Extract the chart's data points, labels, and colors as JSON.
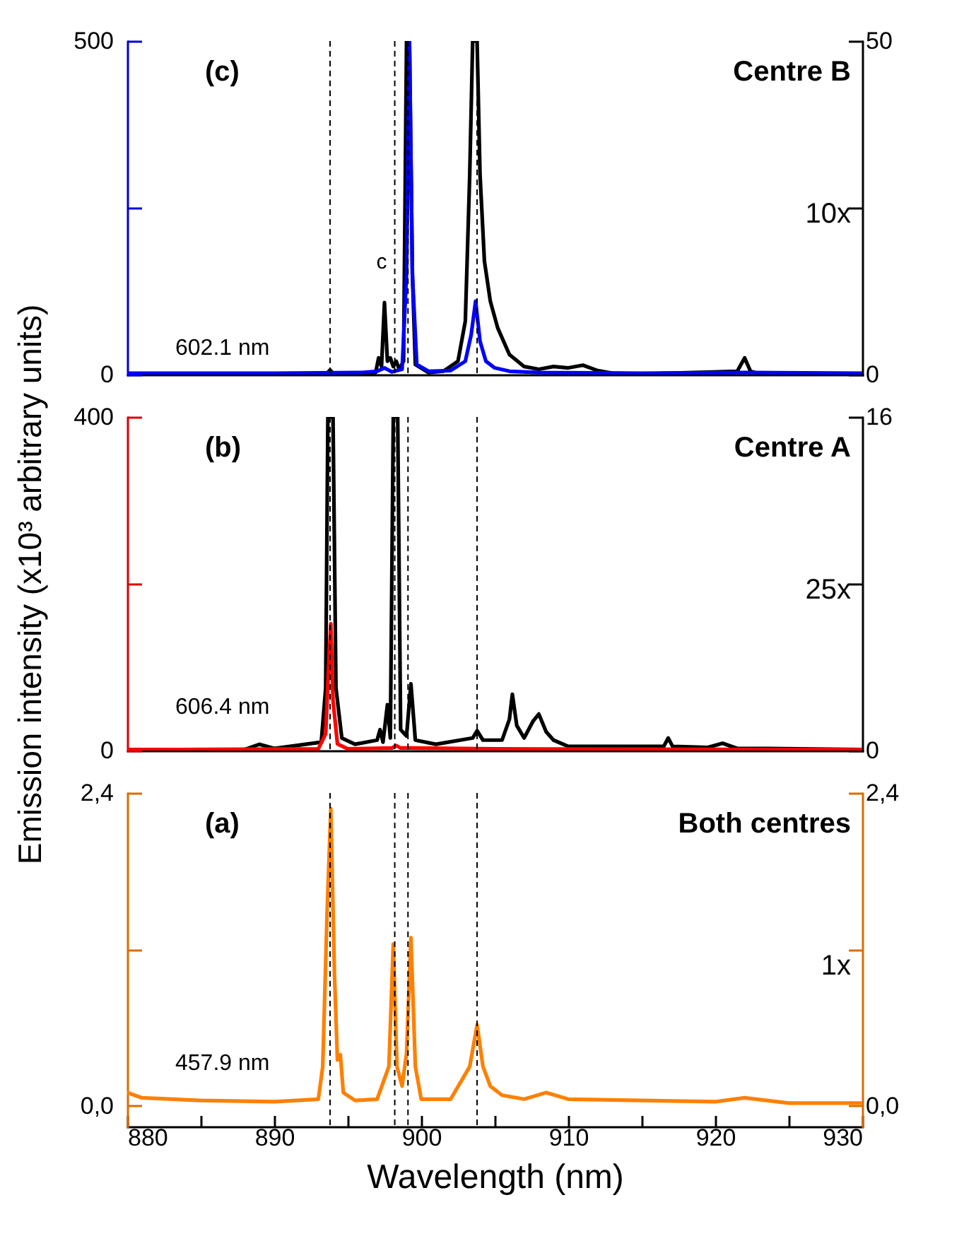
{
  "chart_data": [
    {
      "type": "line",
      "tick_labels": "y",
      "xlim": [
        880,
        930
      ],
      "ylim": [
        0,
        500
      ],
      "yticks": [
        0,
        {
          "value": 250,
          "label": null
        },
        500
      ],
      "y2lim": [
        0,
        50
      ],
      "y2ticks": [
        0,
        {
          "value": 25,
          "label": null
        },
        50
      ],
      "line_style": "solid",
      "ref_lines": [
        {
          "axis": "x",
          "value": 893.8,
          "line_style": "dashed",
          "color": "#000000"
        },
        {
          "axis": "x",
          "value": 898.2,
          "line_style": "dashed",
          "color": "#000000"
        },
        {
          "axis": "x",
          "value": 899.1,
          "line_style": "dashed",
          "color": "#000000"
        },
        {
          "axis": "x",
          "value": 903.8,
          "line_style": "dashed",
          "color": "#000000"
        }
      ],
      "annotations": [
        "(c)",
        "Centre B",
        "10x",
        "602.1 nm",
        "c"
      ],
      "series": [
        {
          "color": "#000000",
          "axis": "y2",
          "x": [
            880,
            890,
            893.6,
            893.8,
            894.0,
            896,
            896.9,
            897.1,
            897.3,
            897.5,
            897.7,
            897.9,
            898.1,
            898.3,
            898.5,
            898.8,
            899.0,
            899.2,
            899.4,
            899.6,
            900.5,
            901.5,
            902.5,
            903.0,
            903.3,
            903.5,
            903.8,
            904.0,
            904.3,
            904.7,
            905.2,
            906,
            907,
            908,
            909,
            910,
            911,
            912,
            913,
            915,
            921.5,
            922,
            922.4,
            923,
            930
          ],
          "values": [
            0.1,
            0.1,
            0.2,
            0.7,
            0.2,
            0.2,
            0.3,
            2.5,
            1.2,
            10.8,
            2,
            2.5,
            1.2,
            2,
            0.8,
            2,
            50,
            50,
            15,
            1.5,
            0.3,
            0.5,
            2,
            8,
            30,
            50,
            50,
            30,
            17,
            11,
            7,
            3,
            1.2,
            0.8,
            1.2,
            1.0,
            1.4,
            0.6,
            0.2,
            0.1,
            0.5,
            2.5,
            0.5,
            0.1,
            0.1
          ]
        },
        {
          "color": "#0000ff",
          "x": [
            880,
            890,
            896,
            897,
            897.5,
            898,
            898.7,
            899.0,
            899.2,
            899.4,
            899.7,
            900.5,
            902,
            903,
            903.4,
            903.7,
            904.0,
            904.4,
            905,
            906,
            908,
            915,
            922,
            930
          ],
          "values": [
            2,
            2,
            3,
            5,
            10,
            4,
            8,
            150,
            500,
            150,
            15,
            5,
            6,
            20,
            60,
            110,
            50,
            20,
            10,
            5,
            3,
            2,
            3,
            2
          ]
        }
      ]
    },
    {
      "type": "line",
      "tick_labels": "y",
      "xlim": [
        880,
        930
      ],
      "ylim": [
        0,
        400
      ],
      "yticks": [
        0,
        {
          "value": 200,
          "label": null
        },
        400
      ],
      "y2lim": [
        0,
        16
      ],
      "y2ticks": [
        0,
        {
          "value": 8,
          "label": null
        },
        16
      ],
      "line_style": "solid",
      "ylabel": "Emission intensity (x10³ arbitrary units)",
      "ref_lines": [
        {
          "axis": "x",
          "value": 893.8,
          "line_style": "dashed",
          "color": "#000000"
        },
        {
          "axis": "x",
          "value": 898.2,
          "line_style": "dashed",
          "color": "#000000"
        },
        {
          "axis": "x",
          "value": 899.1,
          "line_style": "dashed",
          "color": "#000000"
        },
        {
          "axis": "x",
          "value": 903.8,
          "line_style": "dashed",
          "color": "#000000"
        }
      ],
      "annotations": [
        "(b)",
        "Centre A",
        "25x",
        "606.4 nm"
      ],
      "series": [
        {
          "color": "#000000",
          "axis": "y2",
          "x": [
            880,
            888,
            889,
            890,
            893.2,
            893.5,
            893.65,
            894.0,
            894.2,
            894.6,
            895.5,
            897.0,
            897.2,
            897.4,
            897.7,
            897.9,
            898.1,
            898.4,
            898.6,
            899.0,
            899.3,
            899.6,
            901,
            903.5,
            903.8,
            904.2,
            905.5,
            906.0,
            906.2,
            906.5,
            907,
            907.6,
            908.0,
            908.5,
            909,
            910,
            916.5,
            916.8,
            917.1,
            919.5,
            920.5,
            921.5,
            923.5,
            930
          ],
          "values": [
            0.05,
            0.05,
            0.3,
            0.1,
            0.4,
            3,
            16,
            16,
            3,
            0.6,
            0.3,
            0.5,
            1,
            0.4,
            2.2,
            0.6,
            16,
            16,
            1,
            0.7,
            3.2,
            0.5,
            0.3,
            0.6,
            0.95,
            0.5,
            0.5,
            1.5,
            2.7,
            1.2,
            0.6,
            1.4,
            1.75,
            0.9,
            0.5,
            0.2,
            0.2,
            0.6,
            0.2,
            0.15,
            0.35,
            0.1,
            0.1,
            0.05
          ]
        },
        {
          "color": "#ff0000",
          "x": [
            880,
            893,
            893.5,
            893.7,
            893.85,
            894.0,
            894.3,
            895,
            898,
            898.3,
            898.6,
            899.3,
            905,
            930
          ],
          "values": [
            1,
            2,
            20,
            100,
            152,
            60,
            8,
            2,
            3,
            6,
            3,
            3,
            2,
            1
          ]
        }
      ]
    },
    {
      "type": "line",
      "xlim": [
        880,
        930
      ],
      "xticks": [
        880,
        {
          "value": 885,
          "label": null
        },
        890,
        {
          "value": 895,
          "label": null
        },
        900,
        {
          "value": 905,
          "label": null
        },
        910,
        {
          "value": 915,
          "label": null
        },
        920,
        {
          "value": 925,
          "label": null
        },
        930
      ],
      "ylim": [
        -0.16,
        2.4
      ],
      "yticks": [
        {
          "value": 0,
          "label": "0,0"
        },
        {
          "value": 1.2,
          "label": null
        },
        {
          "value": 2.4,
          "label": "2,4"
        }
      ],
      "y2lim": [
        -0.16,
        2.4
      ],
      "y2ticks": [
        {
          "value": 0,
          "label": "0,0"
        },
        {
          "value": 1.2,
          "label": null
        },
        {
          "value": 2.4,
          "label": "2,4"
        }
      ],
      "line_style": "solid",
      "xlabel": "Wavelength (nm)",
      "ref_lines": [
        {
          "axis": "x",
          "value": 893.8,
          "line_style": "dashed",
          "color": "#000000"
        },
        {
          "axis": "x",
          "value": 898.2,
          "line_style": "dashed",
          "color": "#000000"
        },
        {
          "axis": "x",
          "value": 899.1,
          "line_style": "dashed",
          "color": "#000000"
        },
        {
          "axis": "x",
          "value": 903.8,
          "line_style": "dashed",
          "color": "#000000"
        }
      ],
      "annotations": [
        "(a)",
        "Both centres",
        "1x",
        "457.9 nm"
      ],
      "series": [
        {
          "color": "#ff8000",
          "x": [
            880,
            881,
            885,
            890,
            893,
            893.3,
            893.6,
            893.85,
            894.1,
            894.3,
            894.5,
            894.7,
            895.5,
            897,
            897.8,
            898.1,
            898.35,
            898.7,
            899.0,
            899.3,
            899.6,
            900,
            902,
            903.3,
            903.8,
            904.2,
            904.7,
            905.5,
            907,
            908.5,
            910,
            920,
            922,
            925,
            930
          ],
          "values": [
            0.1,
            0.06,
            0.04,
            0.03,
            0.05,
            0.3,
            1.5,
            2.28,
            1.0,
            0.35,
            0.39,
            0.1,
            0.04,
            0.05,
            0.3,
            1.24,
            0.3,
            0.15,
            0.4,
            1.29,
            0.3,
            0.05,
            0.05,
            0.3,
            0.62,
            0.3,
            0.15,
            0.08,
            0.05,
            0.1,
            0.05,
            0.03,
            0.06,
            0.02,
            0.02
          ]
        }
      ]
    }
  ]
}
